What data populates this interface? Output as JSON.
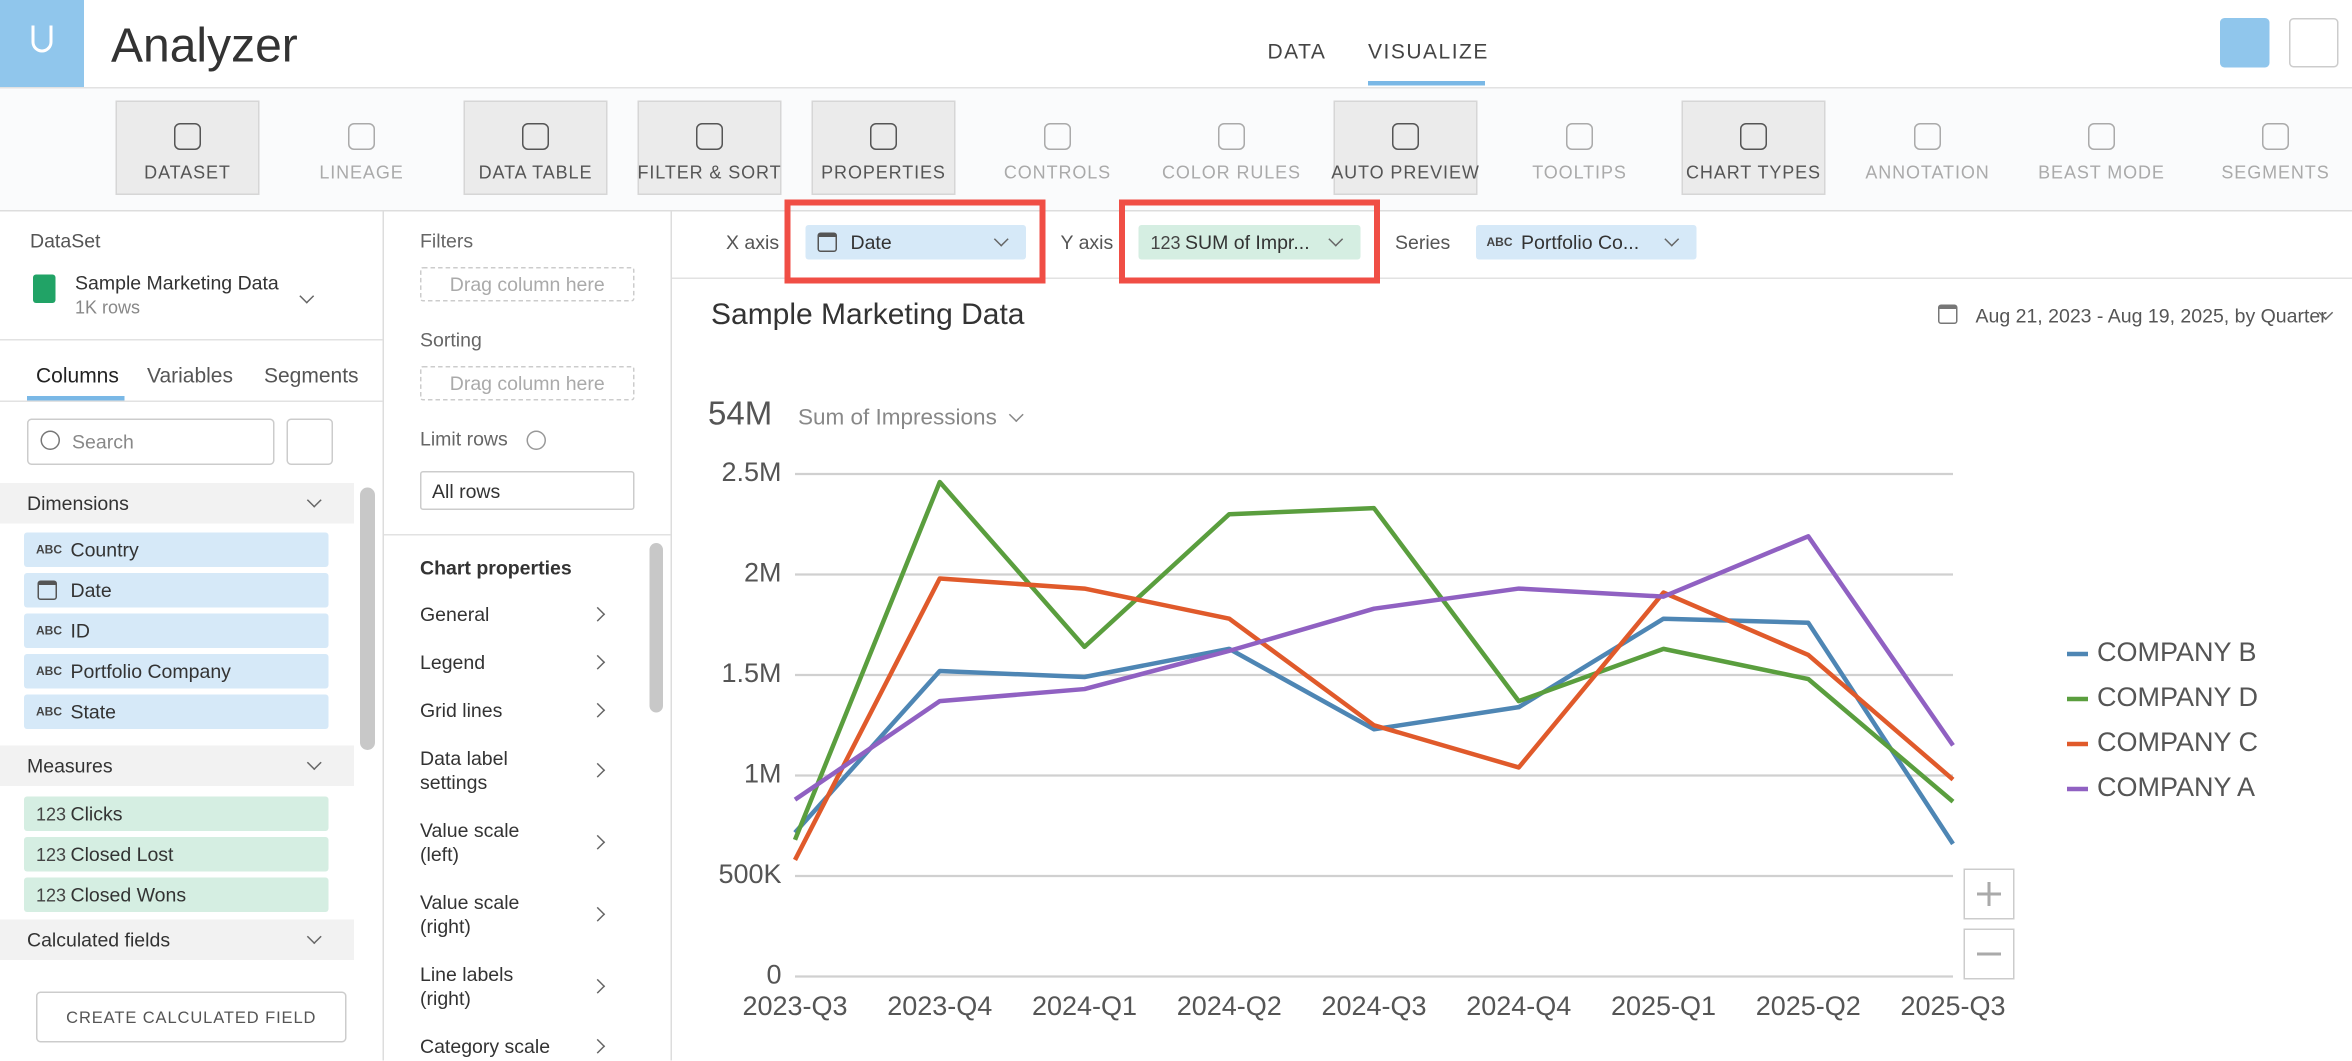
{
  "header": {
    "title": "Analyzer",
    "tabs": [
      "DATA",
      "VISUALIZE"
    ]
  },
  "toolbar": {
    "items": [
      {
        "label": "DATASET",
        "active": true
      },
      {
        "label": "LINEAGE",
        "active": false
      },
      {
        "label": "DATA TABLE",
        "active": true
      },
      {
        "label": "FILTER & SORT",
        "active": true
      },
      {
        "label": "PROPERTIES",
        "active": true
      },
      {
        "label": "CONTROLS",
        "active": false
      },
      {
        "label": "COLOR RULES",
        "active": false
      },
      {
        "label": "AUTO PREVIEW",
        "active": true
      },
      {
        "label": "TOOLTIPS",
        "active": false
      },
      {
        "label": "CHART TYPES",
        "active": true
      },
      {
        "label": "ANNOTATION",
        "active": false
      },
      {
        "label": "BEAST MODE",
        "active": false
      },
      {
        "label": "SEGMENTS",
        "active": false
      }
    ]
  },
  "left_panel": {
    "dataset_label": "DataSet",
    "dataset_name": "Sample Marketing Data",
    "dataset_rows": "1K rows",
    "tabs": [
      "Columns",
      "Variables",
      "Segments"
    ],
    "search_placeholder": "Search",
    "dimensions": {
      "title": "Dimensions",
      "items": [
        {
          "type": "ABC",
          "name": "Country"
        },
        {
          "name": "Date"
        },
        {
          "type": "ABC",
          "name": "ID"
        },
        {
          "type": "ABC",
          "name": "Portfolio Company"
        },
        {
          "type": "ABC",
          "name": "State"
        }
      ]
    },
    "measures": {
      "title": "Measures",
      "items": [
        {
          "type": "123",
          "name": "Clicks"
        },
        {
          "type": "123",
          "name": "Closed Lost"
        },
        {
          "type": "123",
          "name": "Closed Wons"
        }
      ]
    },
    "calculated_title": "Calculated fields",
    "create_button": "CREATE CALCULATED FIELD"
  },
  "middle_panel": {
    "filters": "Filters",
    "filters_placeholder": "Drag column here",
    "sorting": "Sorting",
    "sorting_placeholder": "Drag column here",
    "limit_rows": "Limit rows",
    "limit_value": "All rows",
    "chart_properties": "Chart properties",
    "properties": [
      [
        "General"
      ],
      [
        "Legend"
      ],
      [
        "Grid lines"
      ],
      [
        "Data label",
        "settings"
      ],
      [
        "Value scale",
        "(left)"
      ],
      [
        "Value scale",
        "(right)"
      ],
      [
        "Line labels",
        "(right)"
      ],
      [
        "Category scale"
      ]
    ]
  },
  "axis_bar": {
    "x_label": "X axis",
    "x_value": "Date",
    "y_label": "Y axis",
    "y_type": "123",
    "y_value": "SUM of Impr...",
    "series_label": "Series",
    "series_type": "ABC",
    "series_value": "Portfolio Co..."
  },
  "date_range": "Aug 21, 2023 - Aug 19, 2025, by Quarter",
  "summary": {
    "value": "54M",
    "measure": "Sum of Impressions"
  },
  "chart_data": {
    "type": "line",
    "title": "Sample Marketing Data",
    "categories": [
      "2023-Q3",
      "2023-Q4",
      "2024-Q1",
      "2024-Q2",
      "2024-Q3",
      "2024-Q4",
      "2025-Q1",
      "2025-Q2",
      "2025-Q3"
    ],
    "series": [
      {
        "name": "COMPANY B",
        "color": "#4e86b4",
        "values": [
          716000,
          1520000,
          1490000,
          1630000,
          1230000,
          1340000,
          1780000,
          1760000,
          660000
        ]
      },
      {
        "name": "COMPANY D",
        "color": "#5a9e3e",
        "values": [
          680000,
          2460000,
          1640000,
          2300000,
          2330000,
          1370000,
          1630000,
          1480000,
          870000
        ]
      },
      {
        "name": "COMPANY C",
        "color": "#e05a2b",
        "values": [
          580000,
          1980000,
          1930000,
          1780000,
          1250000,
          1040000,
          1910000,
          1600000,
          980000
        ]
      },
      {
        "name": "COMPANY A",
        "color": "#9061c2",
        "values": [
          880000,
          1370000,
          1430000,
          1620000,
          1830000,
          1930000,
          1890000,
          2190000,
          1150000
        ]
      }
    ],
    "ylim": [
      0,
      2500000
    ],
    "yticks": [
      0,
      {
        "value": 500000,
        "label": "500K"
      },
      {
        "value": 1000000,
        "label": "1M"
      },
      {
        "value": 1500000,
        "label": "1.5M"
      },
      {
        "value": 2000000,
        "label": "2M"
      },
      {
        "value": 2500000,
        "label": "2.5M"
      }
    ],
    "grid": true,
    "legend": "right"
  }
}
